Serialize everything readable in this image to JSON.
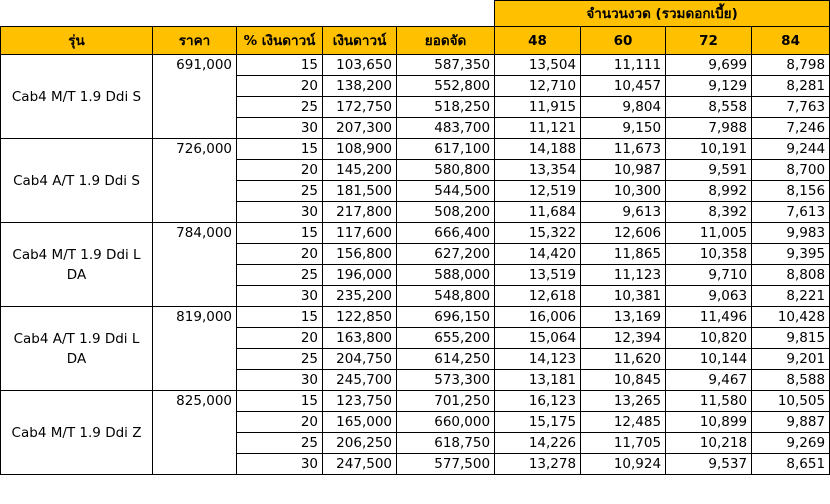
{
  "header": {
    "installments_group": "จำนวนงวด (รวมดอกเบี้ย)",
    "columns": [
      "รุ่น",
      "ราคา",
      "% เงินดาวน์",
      "เงินดาวน์",
      "ยอดจัด",
      "48",
      "60",
      "72",
      "84"
    ]
  },
  "models": [
    {
      "name": "Cab4 M/T 1.9 Ddi S",
      "price": "691,000",
      "rows": [
        [
          "15",
          "103,650",
          "587,350",
          "13,504",
          "11,111",
          "9,699",
          "8,798"
        ],
        [
          "20",
          "138,200",
          "552,800",
          "12,710",
          "10,457",
          "9,129",
          "8,281"
        ],
        [
          "25",
          "172,750",
          "518,250",
          "11,915",
          "9,804",
          "8,558",
          "7,763"
        ],
        [
          "30",
          "207,300",
          "483,700",
          "11,121",
          "9,150",
          "7,988",
          "7,246"
        ]
      ]
    },
    {
      "name": "Cab4 A/T 1.9 Ddi S",
      "price": "726,000",
      "rows": [
        [
          "15",
          "108,900",
          "617,100",
          "14,188",
          "11,673",
          "10,191",
          "9,244"
        ],
        [
          "20",
          "145,200",
          "580,800",
          "13,354",
          "10,987",
          "9,591",
          "8,700"
        ],
        [
          "25",
          "181,500",
          "544,500",
          "12,519",
          "10,300",
          "8,992",
          "8,156"
        ],
        [
          "30",
          "217,800",
          "508,200",
          "11,684",
          "9,613",
          "8,392",
          "7,613"
        ]
      ]
    },
    {
      "name": "Cab4 M/T 1.9 Ddi L DA",
      "price": "784,000",
      "rows": [
        [
          "15",
          "117,600",
          "666,400",
          "15,322",
          "12,606",
          "11,005",
          "9,983"
        ],
        [
          "20",
          "156,800",
          "627,200",
          "14,420",
          "11,865",
          "10,358",
          "9,395"
        ],
        [
          "25",
          "196,000",
          "588,000",
          "13,519",
          "11,123",
          "9,710",
          "8,808"
        ],
        [
          "30",
          "235,200",
          "548,800",
          "12,618",
          "10,381",
          "9,063",
          "8,221"
        ]
      ]
    },
    {
      "name": "Cab4 A/T 1.9 Ddi L DA",
      "price": "819,000",
      "rows": [
        [
          "15",
          "122,850",
          "696,150",
          "16,006",
          "13,169",
          "11,496",
          "10,428"
        ],
        [
          "20",
          "163,800",
          "655,200",
          "15,064",
          "12,394",
          "10,820",
          "9,815"
        ],
        [
          "25",
          "204,750",
          "614,250",
          "14,123",
          "11,620",
          "10,144",
          "9,201"
        ],
        [
          "30",
          "245,700",
          "573,300",
          "13,181",
          "10,845",
          "9,467",
          "8,588"
        ]
      ]
    },
    {
      "name": "Cab4 M/T 1.9 Ddi Z",
      "price": "825,000",
      "rows": [
        [
          "15",
          "123,750",
          "701,250",
          "16,123",
          "13,265",
          "11,580",
          "10,505"
        ],
        [
          "20",
          "165,000",
          "660,000",
          "15,175",
          "12,485",
          "10,899",
          "9,887"
        ],
        [
          "25",
          "206,250",
          "618,750",
          "14,226",
          "11,705",
          "10,218",
          "9,269"
        ],
        [
          "30",
          "247,500",
          "577,500",
          "13,278",
          "10,924",
          "9,537",
          "8,651"
        ]
      ]
    }
  ]
}
